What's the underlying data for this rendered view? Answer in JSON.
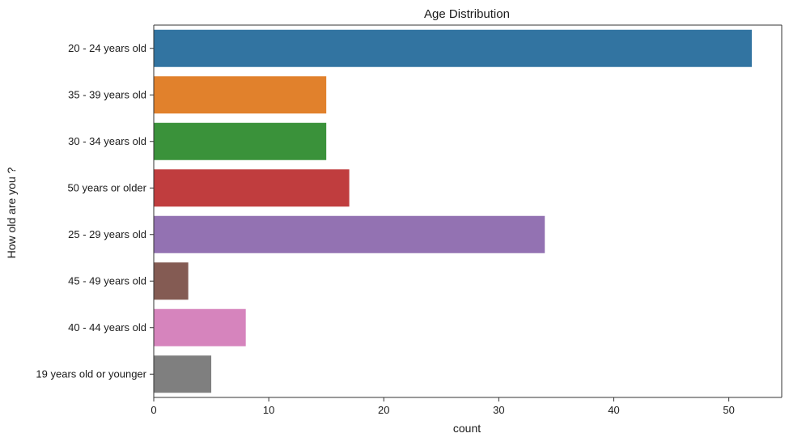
{
  "chart_data": {
    "type": "bar",
    "orientation": "horizontal",
    "title": "Age Distribution",
    "xlabel": "count",
    "ylabel": "How old are you ?",
    "categories": [
      "20 - 24 years old",
      "35 - 39 years old",
      "30 - 34 years old",
      "50 years or older",
      "25 - 29 years old",
      "45 - 49 years old",
      "40 - 44 years old",
      "19 years old or younger"
    ],
    "values": [
      52,
      15,
      15,
      17,
      34,
      3,
      8,
      5
    ],
    "colors": [
      "#3274a1",
      "#e1812c",
      "#3a923a",
      "#c03d3e",
      "#9372b2",
      "#845b53",
      "#d684bd",
      "#7f7f7f"
    ],
    "xlim": [
      0,
      54.6
    ],
    "xticks": [
      0,
      10,
      20,
      30,
      40,
      50
    ],
    "grid": false,
    "legend": "none"
  }
}
